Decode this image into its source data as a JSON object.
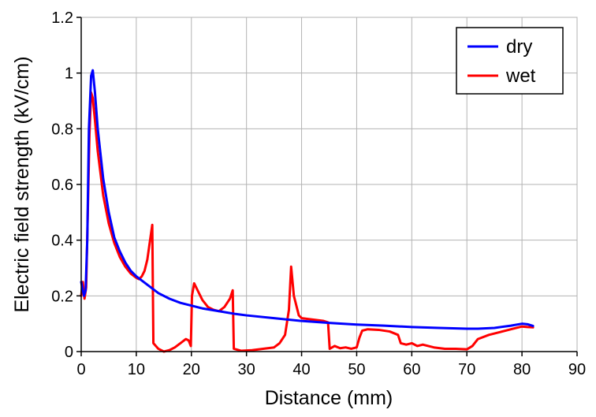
{
  "chart_data": {
    "type": "line",
    "title": "",
    "xlabel": "Distance (mm)",
    "ylabel": "Electric field strength (kV/cm)",
    "xlim": [
      0,
      90
    ],
    "ylim": [
      0,
      1.2
    ],
    "x_ticks": [
      0,
      10,
      20,
      30,
      40,
      50,
      60,
      70,
      80,
      90
    ],
    "y_ticks": [
      0,
      0.2,
      0.4,
      0.6,
      0.8,
      1,
      1.2
    ],
    "x_tick_labels": [
      "0",
      "10",
      "20",
      "30",
      "40",
      "50",
      "60",
      "70",
      "80",
      "90"
    ],
    "y_tick_labels": [
      "0",
      "0.2",
      "0.4",
      "0.6",
      "0.8",
      "1",
      "1.2"
    ],
    "grid": true,
    "legend_position": "top-right",
    "series": [
      {
        "name": "dry",
        "color": "#0000ff",
        "points": [
          [
            0,
            0.25
          ],
          [
            0.5,
            0.2
          ],
          [
            0.8,
            0.22
          ],
          [
            1.1,
            0.4
          ],
          [
            1.4,
            0.8
          ],
          [
            1.8,
            0.99
          ],
          [
            2.1,
            1.01
          ],
          [
            2.5,
            0.93
          ],
          [
            3,
            0.8
          ],
          [
            4,
            0.62
          ],
          [
            5,
            0.5
          ],
          [
            6,
            0.41
          ],
          [
            7,
            0.36
          ],
          [
            8,
            0.32
          ],
          [
            9,
            0.29
          ],
          [
            10,
            0.27
          ],
          [
            12,
            0.24
          ],
          [
            14,
            0.21
          ],
          [
            16,
            0.19
          ],
          [
            18,
            0.175
          ],
          [
            20,
            0.165
          ],
          [
            22,
            0.155
          ],
          [
            25,
            0.145
          ],
          [
            28,
            0.135
          ],
          [
            30,
            0.13
          ],
          [
            35,
            0.12
          ],
          [
            40,
            0.11
          ],
          [
            45,
            0.103
          ],
          [
            50,
            0.097
          ],
          [
            55,
            0.093
          ],
          [
            60,
            0.088
          ],
          [
            65,
            0.085
          ],
          [
            70,
            0.082
          ],
          [
            72,
            0.082
          ],
          [
            75,
            0.085
          ],
          [
            78,
            0.093
          ],
          [
            80,
            0.1
          ],
          [
            81,
            0.098
          ],
          [
            82,
            0.092
          ]
        ]
      },
      {
        "name": "wet",
        "color": "#ff0000",
        "points": [
          [
            0,
            0.2
          ],
          [
            0.3,
            0.25
          ],
          [
            0.6,
            0.19
          ],
          [
            0.9,
            0.23
          ],
          [
            1.2,
            0.5
          ],
          [
            1.5,
            0.78
          ],
          [
            1.8,
            0.93
          ],
          [
            2.1,
            0.91
          ],
          [
            2.5,
            0.83
          ],
          [
            3,
            0.72
          ],
          [
            4,
            0.56
          ],
          [
            5,
            0.46
          ],
          [
            6,
            0.39
          ],
          [
            7,
            0.34
          ],
          [
            8,
            0.305
          ],
          [
            9,
            0.28
          ],
          [
            10,
            0.265
          ],
          [
            10.5,
            0.26
          ],
          [
            11,
            0.27
          ],
          [
            11.5,
            0.29
          ],
          [
            12,
            0.33
          ],
          [
            12.5,
            0.4
          ],
          [
            12.9,
            0.455
          ],
          [
            13.1,
            0.03
          ],
          [
            14,
            0.01
          ],
          [
            15,
            0.0
          ],
          [
            16,
            0.005
          ],
          [
            17,
            0.015
          ],
          [
            18,
            0.03
          ],
          [
            19,
            0.045
          ],
          [
            19.5,
            0.04
          ],
          [
            19.9,
            0.02
          ],
          [
            20.1,
            0.2
          ],
          [
            20.5,
            0.245
          ],
          [
            21,
            0.225
          ],
          [
            22,
            0.185
          ],
          [
            23,
            0.16
          ],
          [
            24,
            0.15
          ],
          [
            25,
            0.145
          ],
          [
            26,
            0.16
          ],
          [
            27,
            0.19
          ],
          [
            27.5,
            0.22
          ],
          [
            27.7,
            0.01
          ],
          [
            29,
            0.003
          ],
          [
            31,
            0.005
          ],
          [
            33,
            0.01
          ],
          [
            35,
            0.015
          ],
          [
            36,
            0.03
          ],
          [
            37,
            0.06
          ],
          [
            37.7,
            0.15
          ],
          [
            38.1,
            0.305
          ],
          [
            38.6,
            0.2
          ],
          [
            39.5,
            0.13
          ],
          [
            40,
            0.12
          ],
          [
            42,
            0.115
          ],
          [
            44,
            0.11
          ],
          [
            44.8,
            0.105
          ],
          [
            45.1,
            0.01
          ],
          [
            46,
            0.02
          ],
          [
            47,
            0.012
          ],
          [
            48,
            0.015
          ],
          [
            49,
            0.01
          ],
          [
            50,
            0.015
          ],
          [
            50.5,
            0.05
          ],
          [
            51,
            0.075
          ],
          [
            52,
            0.08
          ],
          [
            54,
            0.078
          ],
          [
            56,
            0.072
          ],
          [
            57.5,
            0.06
          ],
          [
            58,
            0.03
          ],
          [
            59,
            0.025
          ],
          [
            60,
            0.03
          ],
          [
            61,
            0.02
          ],
          [
            62,
            0.025
          ],
          [
            63,
            0.02
          ],
          [
            64,
            0.015
          ],
          [
            66,
            0.01
          ],
          [
            68,
            0.01
          ],
          [
            70,
            0.008
          ],
          [
            71,
            0.02
          ],
          [
            72,
            0.045
          ],
          [
            74,
            0.06
          ],
          [
            76,
            0.07
          ],
          [
            78,
            0.08
          ],
          [
            80,
            0.09
          ],
          [
            81,
            0.088
          ],
          [
            82,
            0.087
          ]
        ]
      }
    ]
  }
}
